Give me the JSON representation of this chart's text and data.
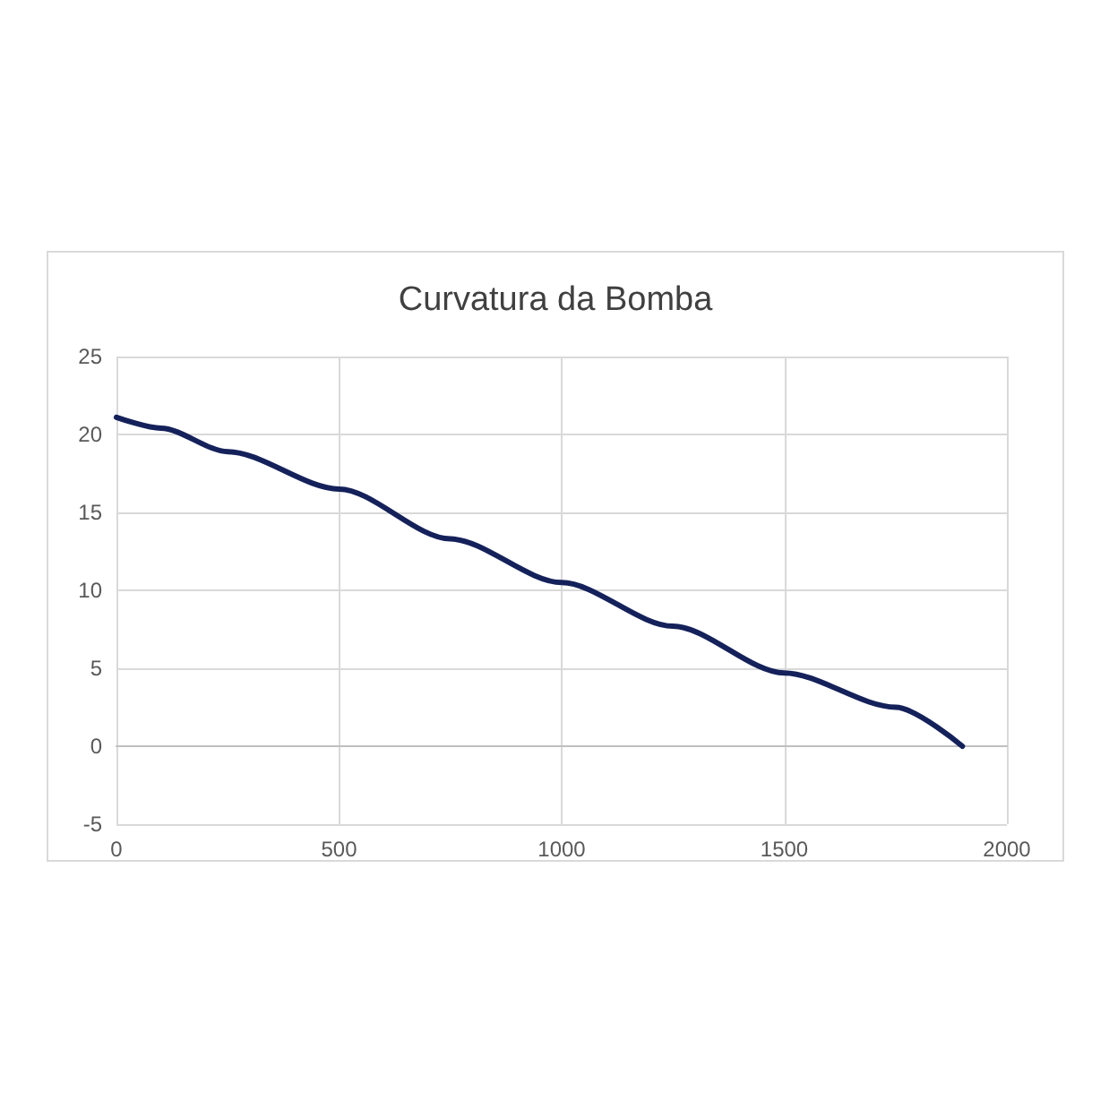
{
  "chart_data": {
    "type": "line",
    "title": "Curvatura da Bomba",
    "x": [
      0,
      100,
      250,
      500,
      750,
      1000,
      1250,
      1500,
      1750,
      1900
    ],
    "series": [
      {
        "color": "#14215a",
        "values": [
          21.1,
          20.4,
          18.9,
          16.5,
          13.3,
          10.5,
          7.7,
          4.7,
          2.5,
          0
        ]
      }
    ],
    "xlim": [
      0,
      2000
    ],
    "xticks": [
      0,
      500,
      1000,
      1500,
      2000
    ],
    "ylim": [
      -5,
      25
    ],
    "yticks": [
      -5,
      0,
      5,
      10,
      15,
      20,
      25
    ],
    "grid": true,
    "marker": "none",
    "line_style": "solid"
  }
}
